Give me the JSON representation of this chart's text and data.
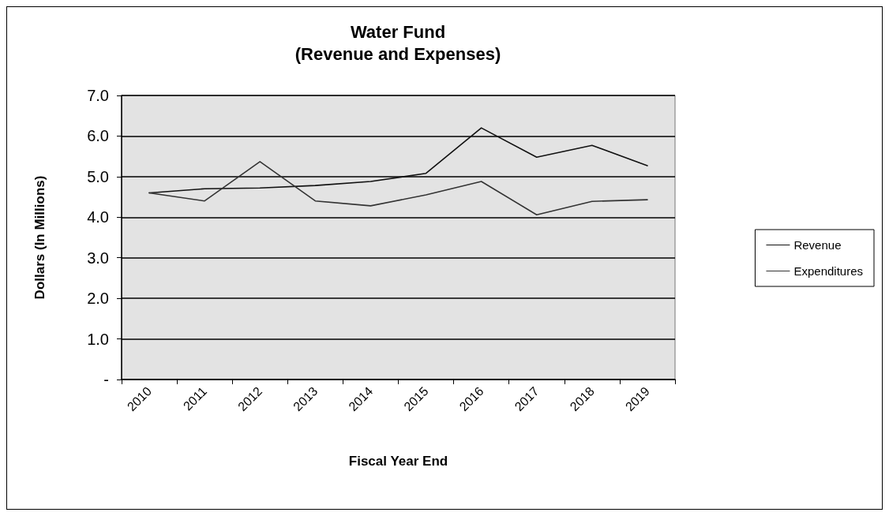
{
  "chart_data": {
    "type": "line",
    "title": "Water Fund\n(Revenue and Expenses)",
    "xlabel": "Fiscal Year End",
    "ylabel": "Dollars (In Millions)",
    "categories": [
      "2010",
      "2011",
      "2012",
      "2013",
      "2014",
      "2015",
      "2016",
      "2017",
      "2018",
      "2019"
    ],
    "series": [
      {
        "name": "Revenue",
        "color": "#111111",
        "values": [
          4.6,
          4.7,
          4.72,
          4.78,
          4.88,
          5.08,
          6.2,
          5.48,
          5.77,
          5.27
        ]
      },
      {
        "name": "Expenditures",
        "color": "#333333",
        "values": [
          4.6,
          4.4,
          5.37,
          4.4,
          4.28,
          4.55,
          4.88,
          4.06,
          4.39,
          4.43
        ]
      }
    ],
    "ylim": [
      0,
      7
    ],
    "yticks": [
      {
        "value": 0,
        "label": "-"
      },
      {
        "value": 1,
        "label": "1.0"
      },
      {
        "value": 2,
        "label": "2.0"
      },
      {
        "value": 3,
        "label": "3.0"
      },
      {
        "value": 4,
        "label": "4.0"
      },
      {
        "value": 5,
        "label": "5.0"
      },
      {
        "value": 6,
        "label": "6.0"
      },
      {
        "value": 7,
        "label": "7.0"
      }
    ],
    "grid": "y",
    "legend": "right",
    "marker": "none",
    "line_style": "solid"
  }
}
